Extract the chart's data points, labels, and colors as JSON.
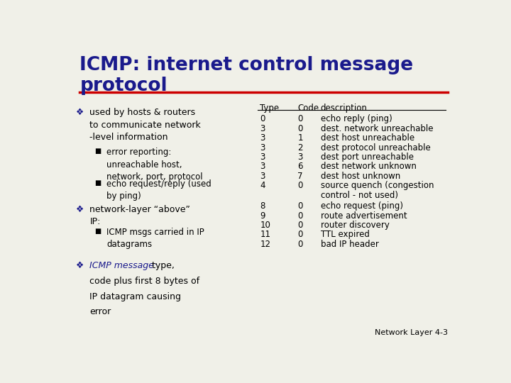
{
  "title_line1": "ICMP: internet control message",
  "title_line2": "protocol",
  "title_color": "#1a1a8c",
  "bg_color": "#f0f0e8",
  "divider_color": "#cc0000",
  "bullet_color": "#1a1a8c",
  "text_color": "#000000",
  "table_header": [
    "Type",
    "Code",
    "description"
  ],
  "table_rows": [
    [
      "0",
      "0",
      "echo reply (ping)"
    ],
    [
      "3",
      "0",
      "dest. network unreachable"
    ],
    [
      "3",
      "1",
      "dest host unreachable"
    ],
    [
      "3",
      "2",
      "dest protocol unreachable"
    ],
    [
      "3",
      "3",
      "dest port unreachable"
    ],
    [
      "3",
      "6",
      "dest network unknown"
    ],
    [
      "3",
      "7",
      "dest host unknown"
    ],
    [
      "4",
      "0",
      "source quench (congestion\ncontrol - not used)"
    ],
    [
      "8",
      "0",
      "echo request (ping)"
    ],
    [
      "9",
      "0",
      "route advertisement"
    ],
    [
      "10",
      "0",
      "router discovery"
    ],
    [
      "11",
      "0",
      "TTL expired"
    ],
    [
      "12",
      "0",
      "bad IP header"
    ]
  ],
  "footer": "Network Layer 4-3"
}
